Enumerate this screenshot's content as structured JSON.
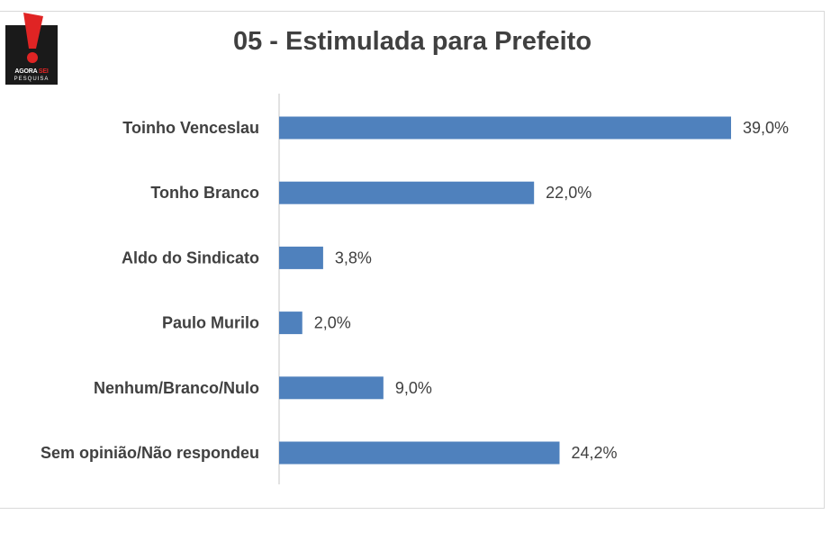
{
  "logo": {
    "brand_left": "AGORA",
    "brand_right": "SEI",
    "sub": "PESQUISA"
  },
  "chart_data": {
    "type": "bar",
    "orientation": "horizontal",
    "title": "05 - Estimulada para Prefeito",
    "categories": [
      "Toinho Venceslau",
      "Tonho Branco",
      "Aldo do Sindicato",
      "Paulo Murilo",
      "Nenhum/Branco/Nulo",
      "Sem opinião/Não respondeu"
    ],
    "values": [
      39.0,
      22.0,
      3.8,
      2.0,
      9.0,
      24.2
    ],
    "value_labels": [
      "39,0%",
      "22,0%",
      "3,8%",
      "2,0%",
      "9,0%",
      "24,2%"
    ],
    "unit": "%",
    "xlim": [
      0,
      39
    ],
    "bar_color": "#4f81bd",
    "grid": false,
    "legend": "none"
  }
}
